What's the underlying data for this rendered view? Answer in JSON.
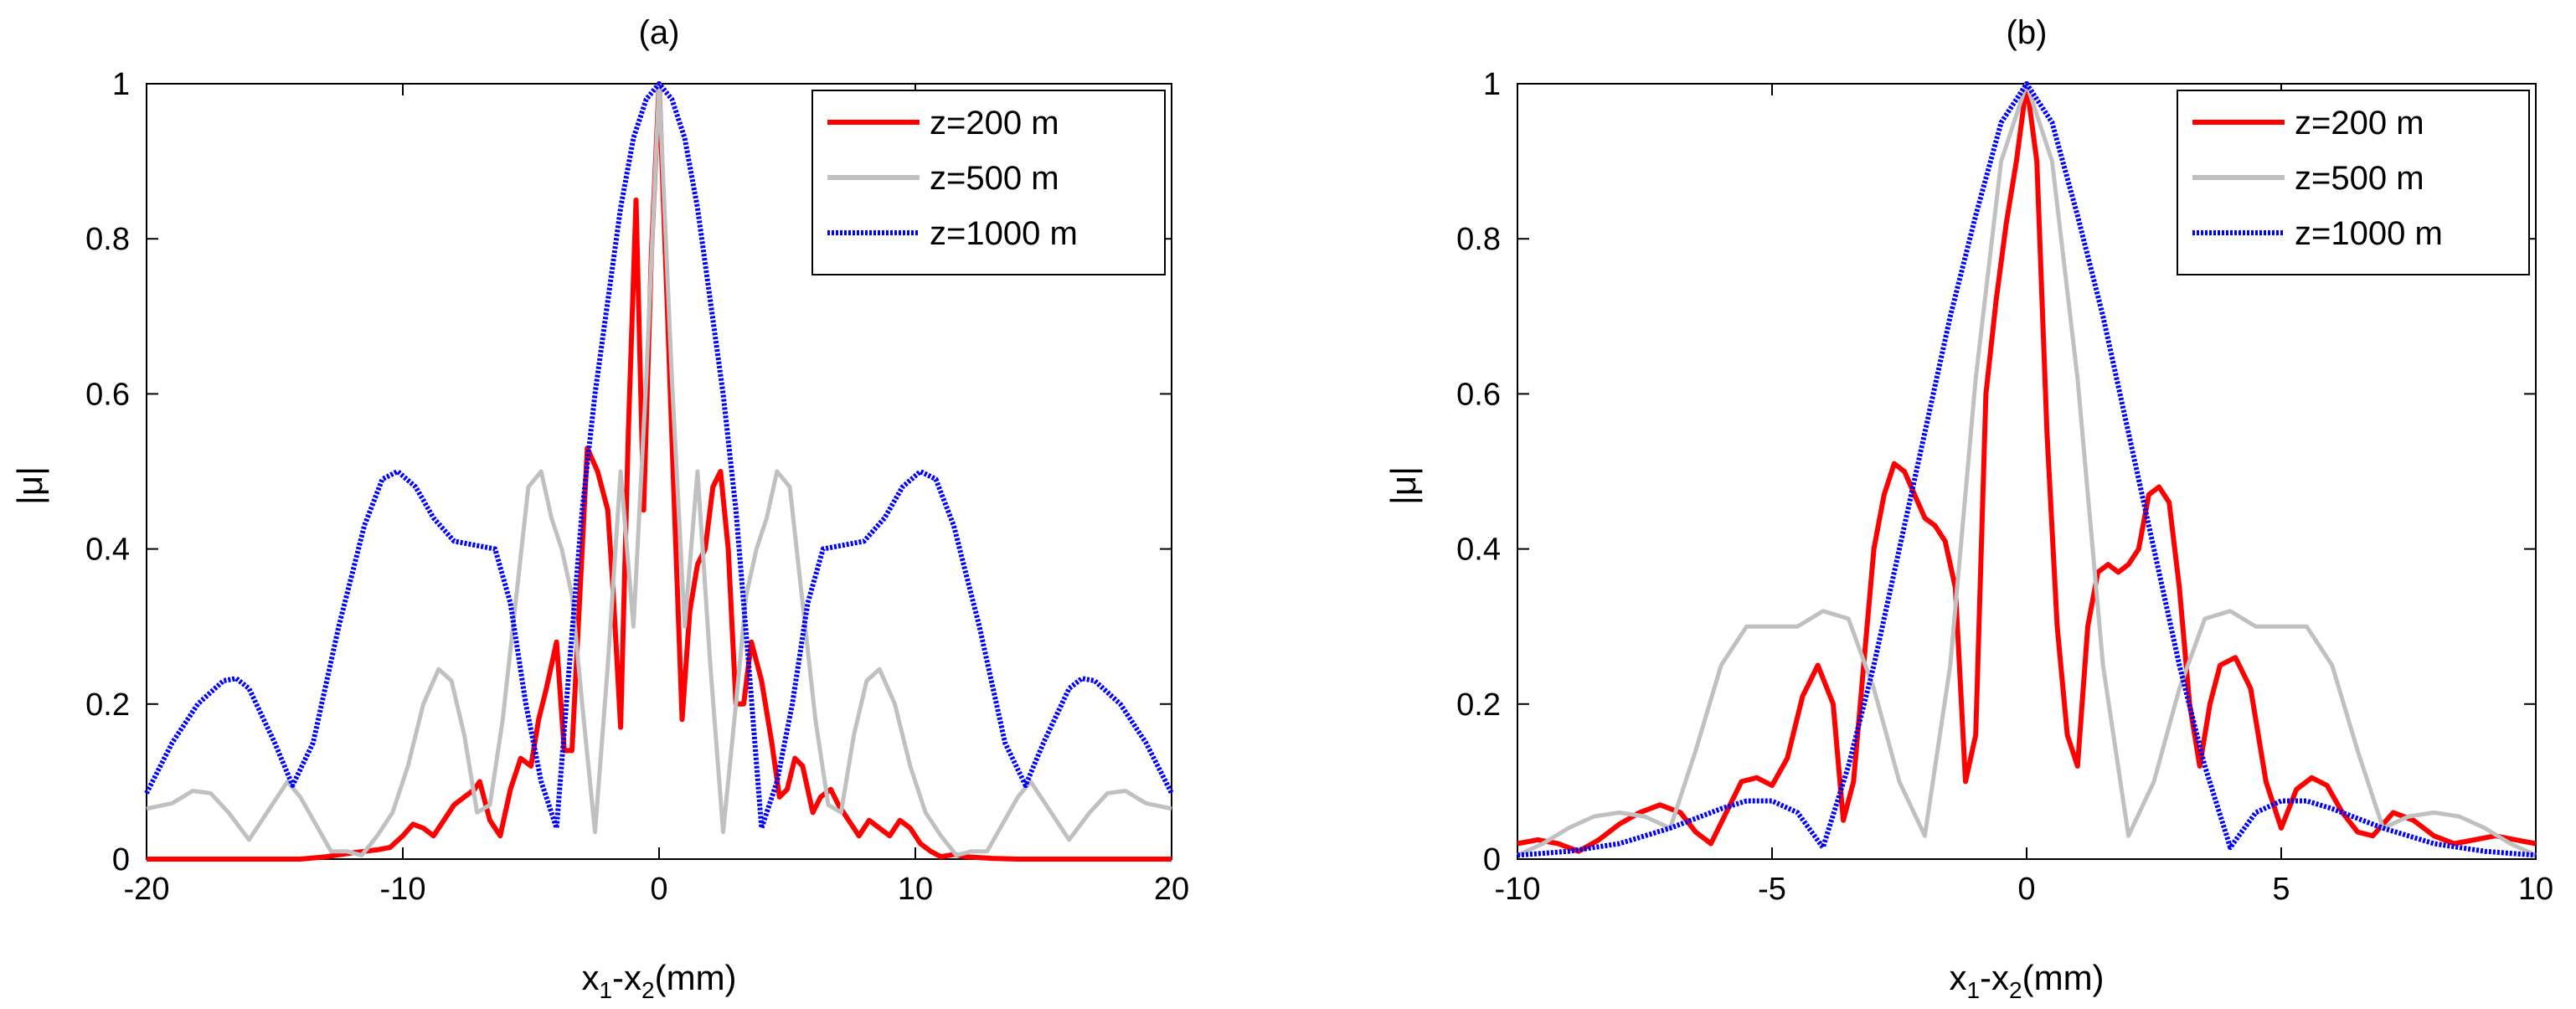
{
  "chart_data": [
    {
      "type": "line",
      "title": "(a)",
      "xlabel": "x1-x2(mm)",
      "ylabel": "|μ|",
      "xlim": [
        -20,
        20
      ],
      "ylim": [
        0,
        1
      ],
      "xticks": [
        -20,
        -10,
        0,
        10,
        20
      ],
      "yticks": [
        0,
        0.2,
        0.4,
        0.6,
        0.8,
        1
      ],
      "xtick_labels": [
        "-20",
        "-10",
        "0",
        "10",
        "20"
      ],
      "ytick_labels": [
        "0",
        "0.2",
        "0.4",
        "0.6",
        "0.8",
        "1"
      ],
      "grid": false,
      "legend_position": "top-right",
      "series": [
        {
          "name": "z=200 m",
          "color": "#ff0000",
          "style": "solid",
          "x": [
            -20,
            -16,
            -14,
            -13,
            -12,
            -11.5,
            -11,
            -10.5,
            -10,
            -9.6,
            -9.2,
            -8.8,
            -8.4,
            -8,
            -7.6,
            -7.2,
            -7,
            -6.6,
            -6.2,
            -5.8,
            -5.4,
            -5,
            -4.7,
            -4.4,
            -4,
            -3.7,
            -3.4,
            -3,
            -2.8,
            -2.4,
            -2,
            -1.8,
            -1.5,
            -1.2,
            -0.9,
            -0.6,
            -0.3,
            0,
            0.3,
            0.6,
            0.9,
            1.2,
            1.5,
            1.8,
            2.1,
            2.4,
            2.7,
            3,
            3.3,
            3.6,
            4,
            4.4,
            4.7,
            5,
            5.3,
            5.6,
            6,
            6.3,
            6.7,
            7,
            7.4,
            7.8,
            8.2,
            8.6,
            9,
            9.4,
            9.8,
            10.2,
            10.6,
            11,
            11.5,
            12,
            13,
            14,
            16,
            20
          ],
          "y": [
            0,
            0,
            0,
            0.003,
            0.008,
            0.01,
            0.012,
            0.015,
            0.03,
            0.045,
            0.04,
            0.03,
            0.05,
            0.07,
            0.08,
            0.09,
            0.1,
            0.05,
            0.03,
            0.09,
            0.13,
            0.12,
            0.18,
            0.22,
            0.28,
            0.14,
            0.14,
            0.4,
            0.53,
            0.5,
            0.45,
            0.35,
            0.17,
            0.55,
            0.85,
            0.45,
            0.78,
            1.0,
            0.73,
            0.45,
            0.18,
            0.32,
            0.38,
            0.4,
            0.48,
            0.5,
            0.4,
            0.2,
            0.2,
            0.28,
            0.23,
            0.15,
            0.08,
            0.09,
            0.13,
            0.12,
            0.06,
            0.08,
            0.09,
            0.07,
            0.05,
            0.03,
            0.05,
            0.04,
            0.03,
            0.05,
            0.04,
            0.02,
            0.01,
            0.003,
            0.006,
            0.003,
            0.001,
            0,
            0,
            0
          ]
        },
        {
          "name": "z=500 m",
          "color": "#c0c0c0",
          "style": "solid",
          "x": [
            -20,
            -19,
            -18.2,
            -17.5,
            -16.8,
            -16,
            -15.2,
            -14.5,
            -14,
            -13.4,
            -12.8,
            -12.2,
            -11.6,
            -11,
            -10.4,
            -9.8,
            -9.2,
            -8.6,
            -8.1,
            -7.6,
            -7.1,
            -6.6,
            -6.1,
            -5.6,
            -5.1,
            -4.6,
            -4.2,
            -3.8,
            -3.4,
            -3,
            -2.5,
            -2,
            -1.5,
            -1,
            -0.5,
            0,
            0.5,
            1,
            1.5,
            2,
            2.5,
            3,
            3.4,
            3.8,
            4.2,
            4.6,
            5.1,
            5.6,
            6.1,
            6.6,
            7.1,
            7.6,
            8.1,
            8.6,
            9.2,
            9.8,
            10.4,
            11,
            11.6,
            12.2,
            12.8,
            13.4,
            14,
            14.5,
            15.2,
            16,
            16.8,
            17.5,
            18.2,
            19,
            20
          ],
          "y": [
            0.065,
            0.072,
            0.088,
            0.085,
            0.06,
            0.025,
            0.065,
            0.1,
            0.08,
            0.045,
            0.01,
            0.01,
            0.005,
            0.03,
            0.06,
            0.12,
            0.2,
            0.245,
            0.23,
            0.16,
            0.06,
            0.07,
            0.18,
            0.33,
            0.48,
            0.5,
            0.44,
            0.4,
            0.34,
            0.2,
            0.035,
            0.25,
            0.5,
            0.3,
            0.62,
            1.0,
            0.62,
            0.3,
            0.5,
            0.25,
            0.035,
            0.2,
            0.34,
            0.4,
            0.44,
            0.5,
            0.48,
            0.33,
            0.18,
            0.07,
            0.06,
            0.16,
            0.23,
            0.245,
            0.2,
            0.12,
            0.06,
            0.03,
            0.005,
            0.01,
            0.01,
            0.045,
            0.08,
            0.1,
            0.065,
            0.025,
            0.06,
            0.085,
            0.088,
            0.072,
            0.065
          ]
        },
        {
          "name": "z=1000 m",
          "color": "#0000ff",
          "style": "dotted",
          "x": [
            -20,
            -19,
            -18,
            -17,
            -16.5,
            -16,
            -15,
            -14.3,
            -13.5,
            -12.5,
            -11.5,
            -10.8,
            -10.2,
            -9.5,
            -8.8,
            -8,
            -7.2,
            -6.4,
            -5.8,
            -5.2,
            -4.6,
            -4,
            -3.5,
            -3,
            -2.5,
            -2,
            -1.5,
            -1,
            -0.5,
            0,
            0.5,
            1,
            1.5,
            2,
            2.5,
            3,
            3.5,
            4,
            4.6,
            5.2,
            5.8,
            6.4,
            7.2,
            8,
            8.8,
            9.5,
            10.2,
            10.8,
            11.5,
            12.5,
            13.5,
            14.3,
            15,
            16,
            16.5,
            17,
            18,
            19,
            20
          ],
          "y": [
            0.085,
            0.15,
            0.2,
            0.23,
            0.233,
            0.22,
            0.15,
            0.095,
            0.15,
            0.3,
            0.43,
            0.49,
            0.5,
            0.48,
            0.44,
            0.41,
            0.405,
            0.4,
            0.33,
            0.2,
            0.1,
            0.04,
            0.25,
            0.45,
            0.6,
            0.72,
            0.84,
            0.93,
            0.98,
            1.0,
            0.98,
            0.93,
            0.84,
            0.72,
            0.6,
            0.45,
            0.25,
            0.04,
            0.1,
            0.2,
            0.33,
            0.4,
            0.405,
            0.41,
            0.44,
            0.48,
            0.5,
            0.49,
            0.43,
            0.3,
            0.15,
            0.095,
            0.15,
            0.22,
            0.233,
            0.23,
            0.2,
            0.15,
            0.085
          ]
        }
      ]
    },
    {
      "type": "line",
      "title": "(b)",
      "xlabel": "x1-x2(mm)",
      "ylabel": "|μ|",
      "xlim": [
        -10,
        10
      ],
      "ylim": [
        0,
        1
      ],
      "xticks": [
        -10,
        -5,
        0,
        5,
        10
      ],
      "yticks": [
        0,
        0.2,
        0.4,
        0.6,
        0.8,
        1
      ],
      "xtick_labels": [
        "-10",
        "-5",
        "0",
        "5",
        "10"
      ],
      "ytick_labels": [
        "0",
        "0.2",
        "0.4",
        "0.6",
        "0.8",
        "1"
      ],
      "grid": false,
      "legend_position": "top-right",
      "series": [
        {
          "name": "z=200 m",
          "color": "#ff0000",
          "style": "solid",
          "x": [
            -10,
            -9.6,
            -9.2,
            -8.8,
            -8.4,
            -8,
            -7.6,
            -7.2,
            -6.8,
            -6.5,
            -6.2,
            -5.9,
            -5.6,
            -5.3,
            -5,
            -4.7,
            -4.4,
            -4.1,
            -3.8,
            -3.6,
            -3.4,
            -3.2,
            -3,
            -2.8,
            -2.6,
            -2.4,
            -2.2,
            -2,
            -1.8,
            -1.6,
            -1.4,
            -1.2,
            -1,
            -0.8,
            -0.6,
            -0.4,
            -0.2,
            0,
            0.2,
            0.4,
            0.6,
            0.8,
            1,
            1.2,
            1.4,
            1.6,
            1.8,
            2,
            2.2,
            2.4,
            2.6,
            2.8,
            3,
            3.2,
            3.4,
            3.6,
            3.8,
            4.1,
            4.4,
            4.7,
            5,
            5.3,
            5.6,
            5.9,
            6.2,
            6.5,
            6.8,
            7.2,
            7.6,
            8,
            8.4,
            8.8,
            9.2,
            9.6,
            10
          ],
          "y": [
            0.02,
            0.025,
            0.02,
            0.01,
            0.025,
            0.045,
            0.06,
            0.07,
            0.06,
            0.035,
            0.02,
            0.06,
            0.1,
            0.105,
            0.095,
            0.13,
            0.21,
            0.25,
            0.2,
            0.05,
            0.1,
            0.25,
            0.4,
            0.47,
            0.51,
            0.5,
            0.47,
            0.44,
            0.43,
            0.41,
            0.35,
            0.1,
            0.16,
            0.6,
            0.72,
            0.82,
            0.9,
            1.0,
            0.9,
            0.55,
            0.3,
            0.16,
            0.12,
            0.3,
            0.37,
            0.38,
            0.37,
            0.38,
            0.4,
            0.47,
            0.48,
            0.46,
            0.35,
            0.2,
            0.12,
            0.2,
            0.25,
            0.26,
            0.22,
            0.1,
            0.04,
            0.09,
            0.105,
            0.095,
            0.06,
            0.035,
            0.03,
            0.06,
            0.05,
            0.03,
            0.02,
            0.025,
            0.03,
            0.025,
            0.02
          ]
        },
        {
          "name": "z=500 m",
          "color": "#c0c0c0",
          "style": "solid",
          "x": [
            -10,
            -9.5,
            -9,
            -8.5,
            -8,
            -7.5,
            -7,
            -6.5,
            -6,
            -5.5,
            -5,
            -4.5,
            -4,
            -3.5,
            -3,
            -2.5,
            -2,
            -1.5,
            -1,
            -0.5,
            0,
            0.5,
            1,
            1.5,
            2,
            2.5,
            3,
            3.5,
            4,
            4.5,
            5,
            5.5,
            6,
            6.5,
            7,
            7.5,
            8,
            8.5,
            9,
            9.5,
            10
          ],
          "y": [
            0.005,
            0.02,
            0.04,
            0.055,
            0.06,
            0.055,
            0.04,
            0.14,
            0.25,
            0.3,
            0.3,
            0.3,
            0.32,
            0.31,
            0.22,
            0.1,
            0.03,
            0.25,
            0.62,
            0.9,
            1.0,
            0.9,
            0.62,
            0.25,
            0.03,
            0.1,
            0.22,
            0.31,
            0.32,
            0.3,
            0.3,
            0.3,
            0.25,
            0.14,
            0.04,
            0.055,
            0.06,
            0.055,
            0.04,
            0.02,
            0.005
          ]
        },
        {
          "name": "z=1000 m",
          "color": "#0000ff",
          "style": "dotted",
          "x": [
            -10,
            -9,
            -8,
            -7,
            -6,
            -5.5,
            -5,
            -4.5,
            -4,
            -3.5,
            -3,
            -2.5,
            -2,
            -1.5,
            -1,
            -0.5,
            0,
            0.5,
            1,
            1.5,
            2,
            2.5,
            3,
            3.5,
            4,
            4.5,
            5,
            5.5,
            6,
            7,
            8,
            9,
            10
          ],
          "y": [
            0.005,
            0.01,
            0.02,
            0.04,
            0.065,
            0.075,
            0.075,
            0.06,
            0.015,
            0.12,
            0.25,
            0.4,
            0.55,
            0.7,
            0.83,
            0.95,
            1.0,
            0.95,
            0.83,
            0.7,
            0.55,
            0.4,
            0.25,
            0.12,
            0.015,
            0.06,
            0.075,
            0.075,
            0.065,
            0.04,
            0.02,
            0.01,
            0.005
          ]
        }
      ]
    }
  ]
}
